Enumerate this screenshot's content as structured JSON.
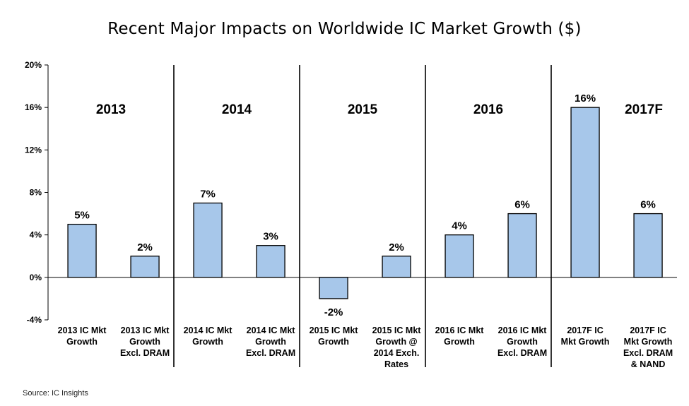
{
  "title": "Recent Major Impacts on Worldwide IC Market Growth ($)",
  "source": "Source: IC Insights",
  "colors": {
    "bar_fill": "#a7c7ea",
    "bar_stroke": "#000000"
  },
  "chart_data": {
    "type": "bar",
    "title": "Recent Major Impacts on Worldwide IC Market Growth ($)",
    "ylim": [
      -4,
      20
    ],
    "yticks": [
      "20%",
      "16%",
      "12%",
      "8%",
      "4%",
      "0%",
      "-4%"
    ],
    "ytick_values": [
      20,
      16,
      12,
      8,
      4,
      0,
      -4
    ],
    "groups": [
      "2013",
      "2014",
      "2015",
      "2016",
      "2017F"
    ],
    "categories": [
      [
        "2013 IC Mkt",
        "Growth"
      ],
      [
        "2013 IC Mkt",
        "Growth",
        "Excl. DRAM"
      ],
      [
        "2014 IC Mkt",
        "Growth"
      ],
      [
        "2014 IC Mkt",
        "Growth",
        "Excl. DRAM"
      ],
      [
        "2015 IC Mkt",
        "Growth"
      ],
      [
        "2015 IC Mkt",
        "Growth @",
        "2014 Exch.",
        "Rates"
      ],
      [
        "2016 IC Mkt",
        "Growth"
      ],
      [
        "2016 IC Mkt",
        "Growth",
        "Excl. DRAM"
      ],
      [
        "2017F IC",
        "Mkt Growth"
      ],
      [
        "2017F IC",
        "Mkt Growth",
        "Excl. DRAM",
        "& NAND"
      ]
    ],
    "values": [
      5,
      2,
      7,
      3,
      -2,
      2,
      4,
      6,
      16,
      6
    ],
    "labels": [
      "5%",
      "2%",
      "7%",
      "3%",
      "-2%",
      "2%",
      "4%",
      "6%",
      "16%",
      "6%"
    ],
    "grid": false,
    "legend": "none"
  }
}
